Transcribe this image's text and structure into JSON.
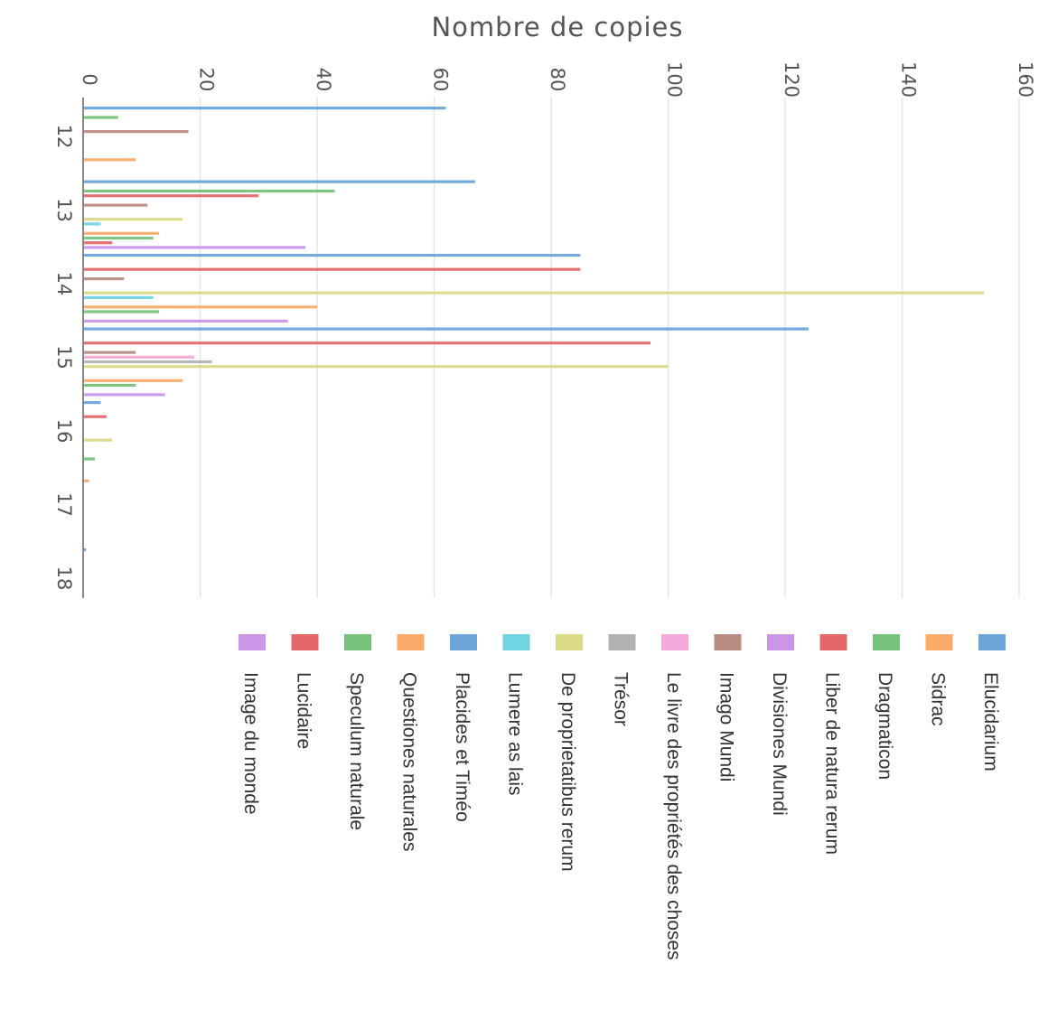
{
  "chart_data": {
    "type": "bar",
    "orientation": "horizontal",
    "title": "",
    "xlabel": "Nombre de copies",
    "ylabel": "",
    "xlim": [
      0,
      160
    ],
    "xticks": [
      0,
      20,
      40,
      60,
      80,
      100,
      120,
      140,
      160
    ],
    "grid": true,
    "legend_position": "bottom",
    "categories": [
      "12",
      "13",
      "14",
      "15",
      "16",
      "17",
      "18"
    ],
    "series": [
      {
        "name": "Elucidarium",
        "color": "#5b9bd5",
        "values": [
          62,
          67,
          85,
          124,
          3,
          0,
          0.5
        ]
      },
      {
        "name": "Sidrac",
        "color": "#f8a35a",
        "values": [
          0,
          0,
          0,
          0,
          0,
          1,
          0
        ]
      },
      {
        "name": "Dragmaticon",
        "color": "#68bb6b",
        "values": [
          6,
          43,
          0,
          0,
          0,
          0,
          0
        ]
      },
      {
        "name": "Liber de natura rerum",
        "color": "#e15759",
        "values": [
          0,
          30,
          85,
          97,
          4,
          0,
          0
        ]
      },
      {
        "name": "Divisiones Mundi",
        "color": "#c58be2",
        "values": [
          0,
          0,
          0,
          0,
          0,
          0,
          0
        ]
      },
      {
        "name": "Imago Mundi",
        "color": "#b07f76",
        "values": [
          18,
          11,
          7,
          9,
          0,
          0,
          0
        ]
      },
      {
        "name": "Le livre des propriétés des choses",
        "color": "#f2a0d6",
        "values": [
          0,
          0,
          0,
          19,
          0,
          0,
          0
        ]
      },
      {
        "name": "Trésor",
        "color": "#aaaaaa",
        "values": [
          0,
          0,
          0,
          22,
          0,
          0,
          0
        ]
      },
      {
        "name": "De proprietatibus rerum",
        "color": "#d6d67a",
        "values": [
          0,
          17,
          154,
          100,
          5,
          0,
          0
        ]
      },
      {
        "name": "Lumere as lais",
        "color": "#5fd0df",
        "values": [
          0,
          3,
          12,
          0,
          0,
          0,
          0
        ]
      },
      {
        "name": "Placides et Timéo",
        "color": "#5b9bd5",
        "values": [
          0,
          0,
          0,
          0,
          0,
          0,
          0
        ]
      },
      {
        "name": "Questiones naturales",
        "color": "#f8a35a",
        "values": [
          9,
          13,
          40,
          17,
          0,
          0,
          0
        ]
      },
      {
        "name": "Speculum naturale",
        "color": "#68bb6b",
        "values": [
          0,
          12,
          13,
          9,
          2,
          0,
          0
        ]
      },
      {
        "name": "Lucidaire",
        "color": "#e15759",
        "values": [
          0,
          5,
          0,
          0,
          0,
          0,
          0
        ]
      },
      {
        "name": "Image du monde",
        "color": "#c58be2",
        "values": [
          0,
          38,
          35,
          14,
          0,
          0,
          0
        ]
      }
    ]
  }
}
